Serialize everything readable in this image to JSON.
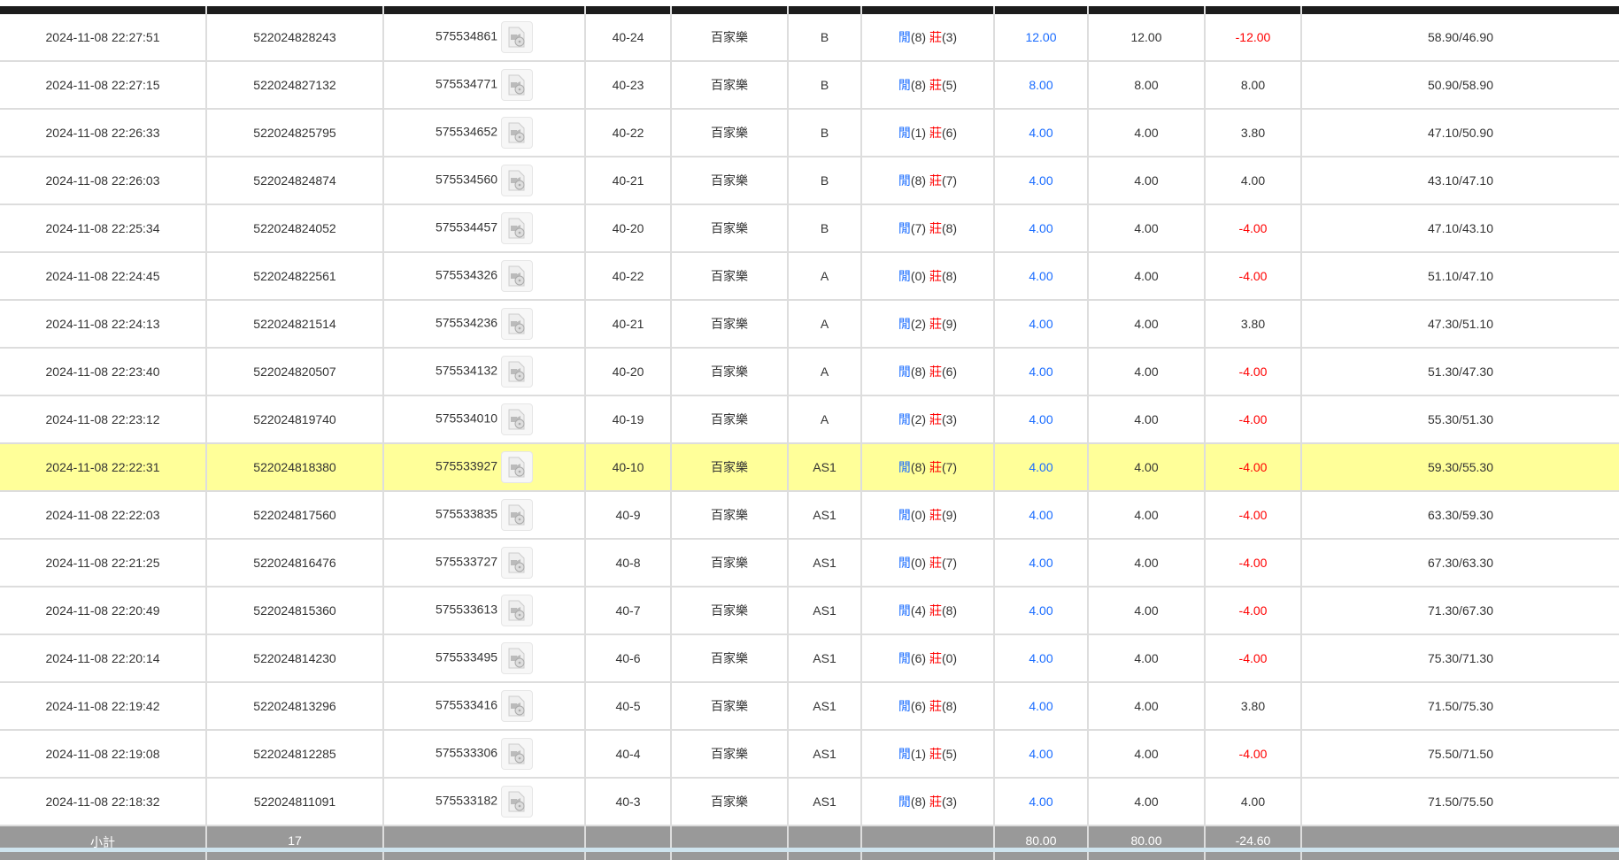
{
  "colors": {
    "header": "#1c1c1c",
    "highlight": "#ffff99",
    "blue": "#1a6cff",
    "red": "#ff0000",
    "footer": "#999999"
  },
  "rows": [
    {
      "time": "2024-11-08 22:27:51",
      "bet_id": "522024828243",
      "round_id": "575534861",
      "shoe": "40-24",
      "game": "百家樂",
      "table": "B",
      "player_label": "閒",
      "player": "(8)",
      "banker_label": "莊",
      "banker": "(3)",
      "bet": "12.00",
      "valid": "12.00",
      "win": "-12.00",
      "win_neg": true,
      "balance": "58.90/46.90"
    },
    {
      "time": "2024-11-08 22:27:15",
      "bet_id": "522024827132",
      "round_id": "575534771",
      "shoe": "40-23",
      "game": "百家樂",
      "table": "B",
      "player_label": "閒",
      "player": "(8)",
      "banker_label": "莊",
      "banker": "(5)",
      "bet": "8.00",
      "valid": "8.00",
      "win": "8.00",
      "win_neg": false,
      "balance": "50.90/58.90"
    },
    {
      "time": "2024-11-08 22:26:33",
      "bet_id": "522024825795",
      "round_id": "575534652",
      "shoe": "40-22",
      "game": "百家樂",
      "table": "B",
      "player_label": "閒",
      "player": "(1)",
      "banker_label": "莊",
      "banker": "(6)",
      "bet": "4.00",
      "valid": "4.00",
      "win": "3.80",
      "win_neg": false,
      "balance": "47.10/50.90"
    },
    {
      "time": "2024-11-08 22:26:03",
      "bet_id": "522024824874",
      "round_id": "575534560",
      "shoe": "40-21",
      "game": "百家樂",
      "table": "B",
      "player_label": "閒",
      "player": "(8)",
      "banker_label": "莊",
      "banker": "(7)",
      "bet": "4.00",
      "valid": "4.00",
      "win": "4.00",
      "win_neg": false,
      "balance": "43.10/47.10"
    },
    {
      "time": "2024-11-08 22:25:34",
      "bet_id": "522024824052",
      "round_id": "575534457",
      "shoe": "40-20",
      "game": "百家樂",
      "table": "B",
      "player_label": "閒",
      "player": "(7)",
      "banker_label": "莊",
      "banker": "(8)",
      "bet": "4.00",
      "valid": "4.00",
      "win": "-4.00",
      "win_neg": true,
      "balance": "47.10/43.10"
    },
    {
      "time": "2024-11-08 22:24:45",
      "bet_id": "522024822561",
      "round_id": "575534326",
      "shoe": "40-22",
      "game": "百家樂",
      "table": "A",
      "player_label": "閒",
      "player": "(0)",
      "banker_label": "莊",
      "banker": "(8)",
      "bet": "4.00",
      "valid": "4.00",
      "win": "-4.00",
      "win_neg": true,
      "balance": "51.10/47.10"
    },
    {
      "time": "2024-11-08 22:24:13",
      "bet_id": "522024821514",
      "round_id": "575534236",
      "shoe": "40-21",
      "game": "百家樂",
      "table": "A",
      "player_label": "閒",
      "player": "(2)",
      "banker_label": "莊",
      "banker": "(9)",
      "bet": "4.00",
      "valid": "4.00",
      "win": "3.80",
      "win_neg": false,
      "balance": "47.30/51.10"
    },
    {
      "time": "2024-11-08 22:23:40",
      "bet_id": "522024820507",
      "round_id": "575534132",
      "shoe": "40-20",
      "game": "百家樂",
      "table": "A",
      "player_label": "閒",
      "player": "(8)",
      "banker_label": "莊",
      "banker": "(6)",
      "bet": "4.00",
      "valid": "4.00",
      "win": "-4.00",
      "win_neg": true,
      "balance": "51.30/47.30"
    },
    {
      "time": "2024-11-08 22:23:12",
      "bet_id": "522024819740",
      "round_id": "575534010",
      "shoe": "40-19",
      "game": "百家樂",
      "table": "A",
      "player_label": "閒",
      "player": "(2)",
      "banker_label": "莊",
      "banker": "(3)",
      "bet": "4.00",
      "valid": "4.00",
      "win": "-4.00",
      "win_neg": true,
      "balance": "55.30/51.30"
    },
    {
      "time": "2024-11-08 22:22:31",
      "bet_id": "522024818380",
      "round_id": "575533927",
      "shoe": "40-10",
      "game": "百家樂",
      "table": "AS1",
      "player_label": "閒",
      "player": "(8)",
      "banker_label": "莊",
      "banker": "(7)",
      "bet": "4.00",
      "valid": "4.00",
      "win": "-4.00",
      "win_neg": true,
      "balance": "59.30/55.30",
      "highlighted": true
    },
    {
      "time": "2024-11-08 22:22:03",
      "bet_id": "522024817560",
      "round_id": "575533835",
      "shoe": "40-9",
      "game": "百家樂",
      "table": "AS1",
      "player_label": "閒",
      "player": "(0)",
      "banker_label": "莊",
      "banker": "(9)",
      "bet": "4.00",
      "valid": "4.00",
      "win": "-4.00",
      "win_neg": true,
      "balance": "63.30/59.30"
    },
    {
      "time": "2024-11-08 22:21:25",
      "bet_id": "522024816476",
      "round_id": "575533727",
      "shoe": "40-8",
      "game": "百家樂",
      "table": "AS1",
      "player_label": "閒",
      "player": "(0)",
      "banker_label": "莊",
      "banker": "(7)",
      "bet": "4.00",
      "valid": "4.00",
      "win": "-4.00",
      "win_neg": true,
      "balance": "67.30/63.30"
    },
    {
      "time": "2024-11-08 22:20:49",
      "bet_id": "522024815360",
      "round_id": "575533613",
      "shoe": "40-7",
      "game": "百家樂",
      "table": "AS1",
      "player_label": "閒",
      "player": "(4)",
      "banker_label": "莊",
      "banker": "(8)",
      "bet": "4.00",
      "valid": "4.00",
      "win": "-4.00",
      "win_neg": true,
      "balance": "71.30/67.30"
    },
    {
      "time": "2024-11-08 22:20:14",
      "bet_id": "522024814230",
      "round_id": "575533495",
      "shoe": "40-6",
      "game": "百家樂",
      "table": "AS1",
      "player_label": "閒",
      "player": "(6)",
      "banker_label": "莊",
      "banker": "(0)",
      "bet": "4.00",
      "valid": "4.00",
      "win": "-4.00",
      "win_neg": true,
      "balance": "75.30/71.30"
    },
    {
      "time": "2024-11-08 22:19:42",
      "bet_id": "522024813296",
      "round_id": "575533416",
      "shoe": "40-5",
      "game": "百家樂",
      "table": "AS1",
      "player_label": "閒",
      "player": "(6)",
      "banker_label": "莊",
      "banker": "(8)",
      "bet": "4.00",
      "valid": "4.00",
      "win": "3.80",
      "win_neg": false,
      "balance": "71.50/75.30"
    },
    {
      "time": "2024-11-08 22:19:08",
      "bet_id": "522024812285",
      "round_id": "575533306",
      "shoe": "40-4",
      "game": "百家樂",
      "table": "AS1",
      "player_label": "閒",
      "player": "(1)",
      "banker_label": "莊",
      "banker": "(5)",
      "bet": "4.00",
      "valid": "4.00",
      "win": "-4.00",
      "win_neg": true,
      "balance": "75.50/71.50"
    },
    {
      "time": "2024-11-08 22:18:32",
      "bet_id": "522024811091",
      "round_id": "575533182",
      "shoe": "40-3",
      "game": "百家樂",
      "table": "AS1",
      "player_label": "閒",
      "player": "(8)",
      "banker_label": "莊",
      "banker": "(3)",
      "bet": "4.00",
      "valid": "4.00",
      "win": "4.00",
      "win_neg": false,
      "balance": "71.50/75.50"
    }
  ],
  "footer": {
    "label": "小計",
    "count": "17",
    "bet_total": "80.00",
    "valid_total": "80.00",
    "win_total": "-24.60"
  }
}
